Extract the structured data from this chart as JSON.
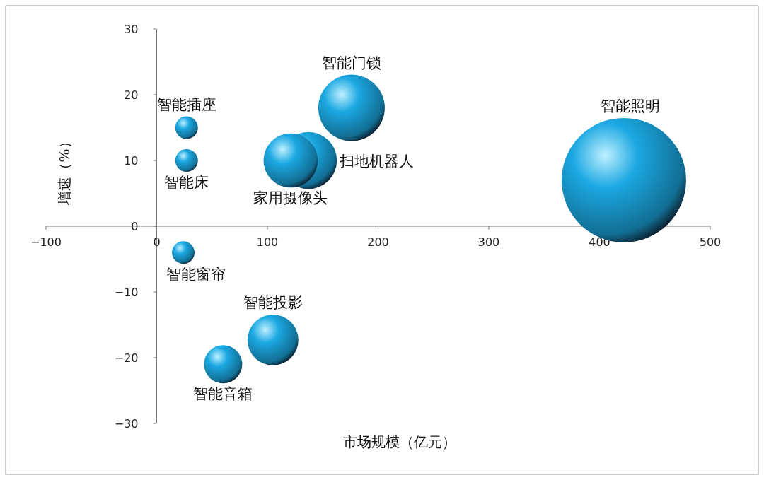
{
  "chart_data": {
    "type": "bubble",
    "xlabel": "市场规模（亿元）",
    "ylabel": "增速（%）",
    "xlim": [
      -100,
      500
    ],
    "xticks": [
      {
        "value": -100,
        "label": "−100"
      },
      0,
      100,
      200,
      300,
      400,
      500
    ],
    "ylim": [
      -30,
      30
    ],
    "yticks": [
      {
        "value": -30,
        "label": "−30"
      },
      {
        "value": -20,
        "label": "−20"
      },
      {
        "value": -10,
        "label": "−10"
      },
      0,
      10,
      20,
      30
    ],
    "series": [
      {
        "name": "智能插座",
        "color": "#1ba8e2",
        "x": [
          27
        ],
        "values": [
          15
        ],
        "sizes": [
          0.033
        ]
      },
      {
        "name": "智能床",
        "color": "#1ba8e2",
        "x": [
          27
        ],
        "values": [
          10
        ],
        "sizes": [
          0.033
        ]
      },
      {
        "name": "智能窗帘",
        "color": "#1ba8e2",
        "x": [
          24
        ],
        "values": [
          -4
        ],
        "sizes": [
          0.033
        ]
      },
      {
        "name": "扫地机器人",
        "color": "#1ba8e2",
        "x": [
          137
        ],
        "values": [
          10
        ],
        "sizes": [
          0.21
        ]
      },
      {
        "name": "家用摄像头",
        "color": "#1ba8e2",
        "x": [
          121
        ],
        "values": [
          10
        ],
        "sizes": [
          0.19
        ]
      },
      {
        "name": "智能门锁",
        "color": "#1ba8e2",
        "x": [
          176
        ],
        "values": [
          18
        ],
        "sizes": [
          0.285
        ]
      },
      {
        "name": "智能照明",
        "color": "#1ba8e2",
        "x": [
          422
        ],
        "values": [
          7
        ],
        "sizes": [
          1
        ]
      },
      {
        "name": "智能投影",
        "color": "#1ba8e2",
        "x": [
          105
        ],
        "values": [
          -17.3
        ],
        "sizes": [
          0.167
        ]
      },
      {
        "name": "智能音箱",
        "color": "#1ba8e2",
        "x": [
          60
        ],
        "values": [
          -21
        ],
        "sizes": [
          0.094
        ]
      }
    ]
  }
}
